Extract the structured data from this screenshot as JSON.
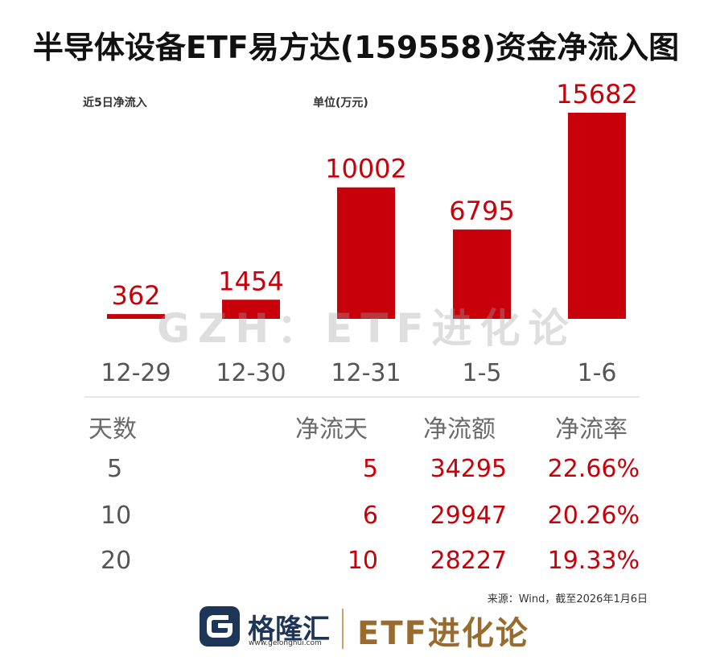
{
  "title": "半导体设备ETF易方达(159558)资金净流入图",
  "chart_data": {
    "type": "bar",
    "subtitle_left": "近5日净流入",
    "unit_label": "单位(万元)",
    "categories": [
      "12-29",
      "12-30",
      "12-31",
      "1-5",
      "1-6"
    ],
    "values": [
      362,
      1454,
      10002,
      6795,
      15682
    ],
    "ylim": [
      0,
      16000
    ],
    "bar_color": "#c8000a",
    "grid": false,
    "legend": "none"
  },
  "watermark": "GZH：ETF进化论",
  "stats_table": {
    "headers": [
      "天数",
      "净流天",
      "净流额",
      "净流率"
    ],
    "rows": [
      {
        "days": "5",
        "flow_days": "5",
        "amount": "34295",
        "rate": "22.66%"
      },
      {
        "days": "10",
        "flow_days": "6",
        "amount": "29947",
        "rate": "20.26%"
      },
      {
        "days": "20",
        "flow_days": "10",
        "amount": "28227",
        "rate": "19.33%"
      }
    ]
  },
  "source": "来源：Wind，截至2026年1月6日",
  "footer": {
    "logo_text": "格隆汇",
    "logo_url": "www.gelonghui.com",
    "brand": "ETF进化论",
    "logo_icon": "g-logo-icon"
  },
  "colors": {
    "accent_red": "#c8000a",
    "brand_gold": "#9a6b2f",
    "logo_navy": "#1d3557"
  }
}
